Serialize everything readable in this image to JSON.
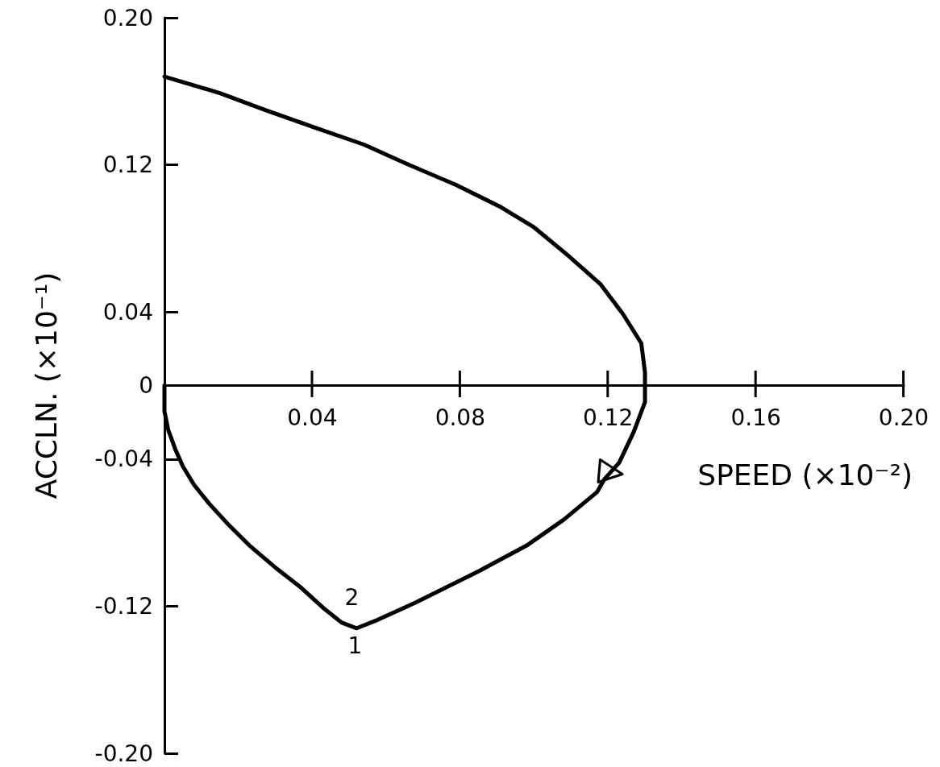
{
  "chart_data": {
    "type": "line",
    "xlabel": "SPEED (×10⁻²)",
    "ylabel": "ACCLN. (×10⁻¹)",
    "xlim": [
      0,
      0.2
    ],
    "ylim": [
      -0.2,
      0.2
    ],
    "xticks": [
      0.04,
      0.08,
      0.12,
      0.16,
      {
        "value": 0.2,
        "label": "0.20"
      }
    ],
    "yticks": [
      {
        "value": 0.2,
        "label": "0.20"
      },
      0.12,
      0.04,
      0,
      -0.04,
      -0.12,
      {
        "value": -0.2,
        "label": "-0.20"
      }
    ],
    "series": [
      {
        "color": "#000000",
        "x": [
          0,
          0.015,
          0.027,
          0.041,
          0.054,
          0.065,
          0.079,
          0.091,
          0.1,
          0.109,
          0.118,
          0.124,
          0.129,
          0.13,
          0.13,
          0.13,
          0.127,
          0.123,
          0.119,
          0.117,
          0.108,
          0.098,
          0.085,
          0.068,
          0.057,
          0.052,
          0.048,
          0.043,
          0.037,
          0.03,
          0.023,
          0.017,
          0.012,
          0.008,
          0.005,
          0.003,
          0.001,
          0,
          0
        ],
        "values": [
          0.168,
          0.159,
          0.15,
          0.14,
          0.131,
          0.121,
          0.109,
          0.097,
          0.086,
          0.071,
          0.055,
          0.039,
          0.023,
          0.007,
          0,
          -0.009,
          -0.025,
          -0.042,
          -0.051,
          -0.058,
          -0.073,
          -0.087,
          -0.101,
          -0.118,
          -0.128,
          -0.132,
          -0.129,
          -0.121,
          -0.11,
          -0.099,
          -0.087,
          -0.075,
          -0.064,
          -0.054,
          -0.044,
          -0.035,
          -0.024,
          -0.014,
          0
        ]
      }
    ],
    "annotations": [
      "2",
      "1"
    ]
  }
}
